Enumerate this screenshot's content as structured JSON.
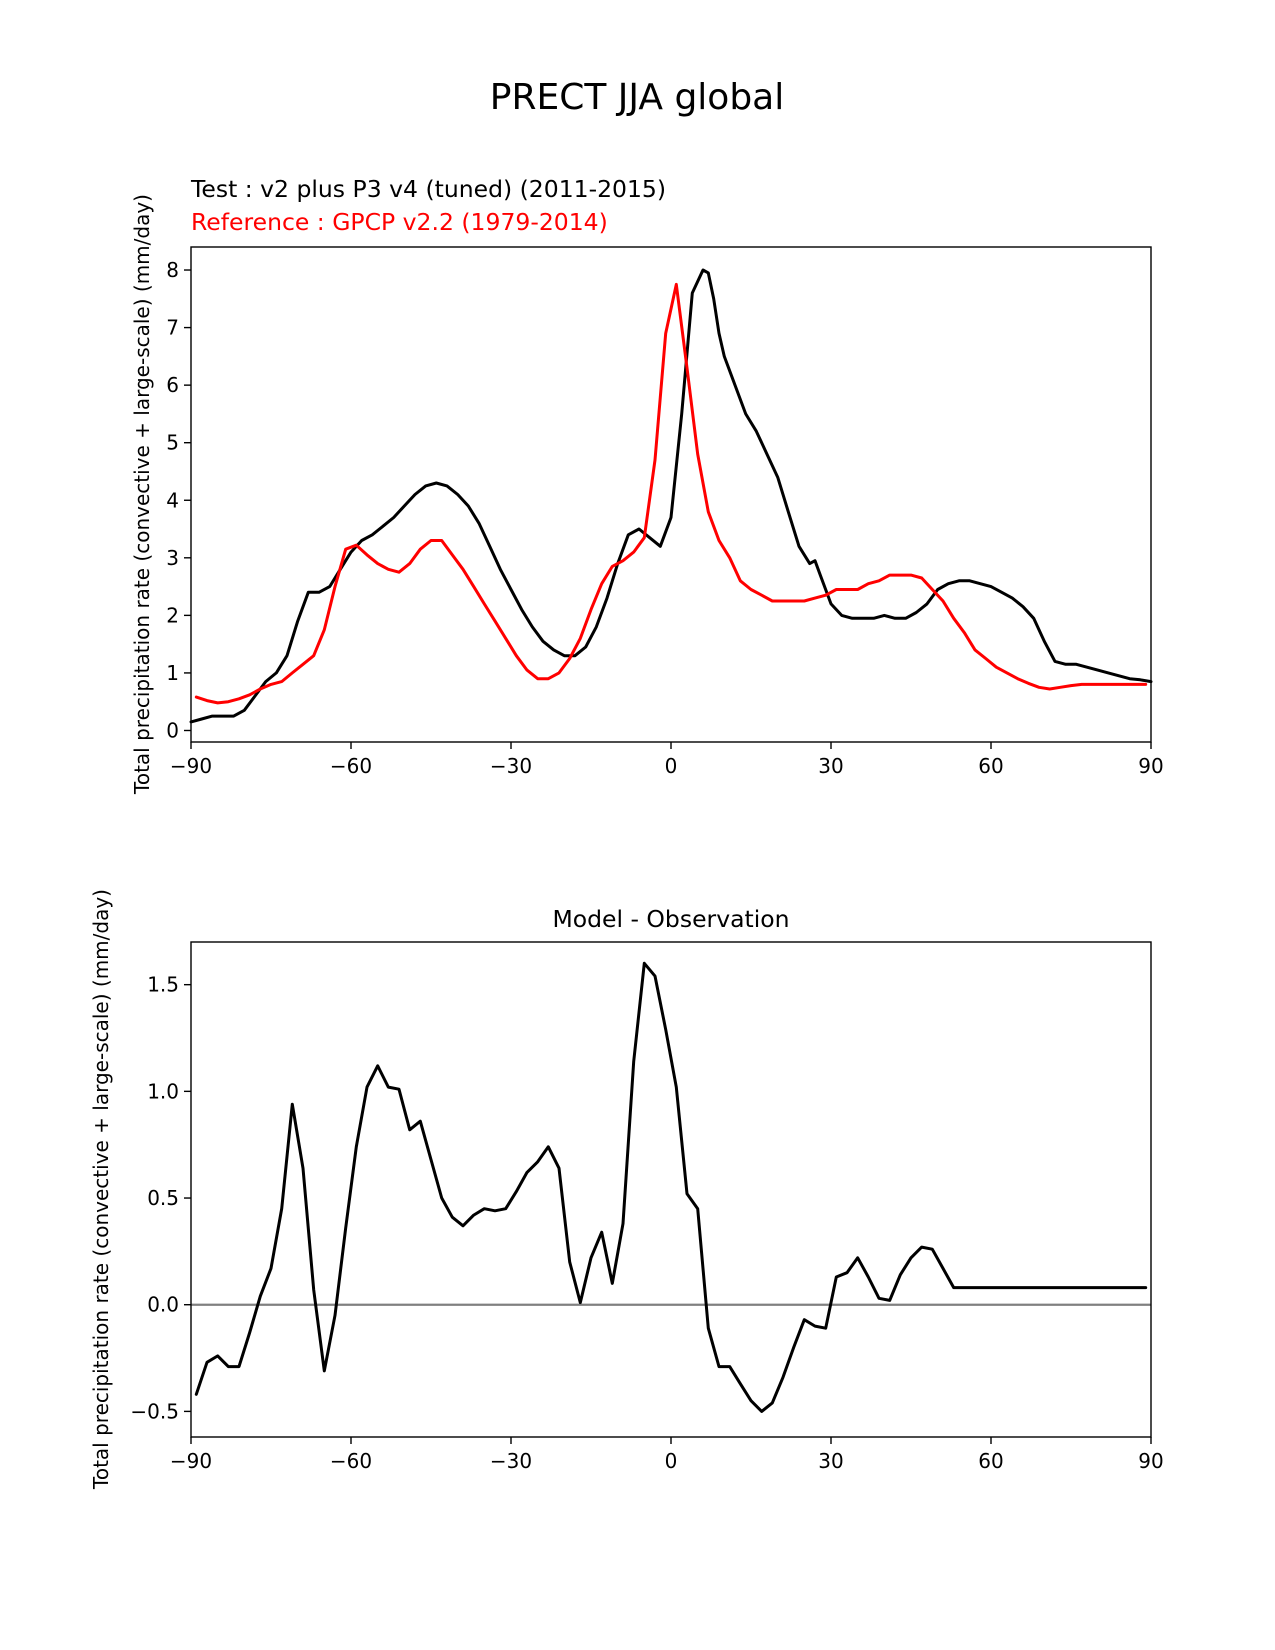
{
  "figure": {
    "title": "PRECT JJA global",
    "test_label": "Test : v2 plus P3 v4 (tuned) (2011-2015)",
    "reference_label": "Reference : GPCP v2.2 (1979-2014)"
  },
  "colors": {
    "test": "#000000",
    "reference": "#ff0000",
    "zero_line": "#808080"
  },
  "chart_data": [
    {
      "type": "line",
      "title": "",
      "xlabel": "",
      "ylabel": "Total precipitation rate (convective + large-scale) (mm/day)",
      "xlim": [
        -90,
        90
      ],
      "ylim": [
        -0.2,
        8.4
      ],
      "xticks": [
        -90,
        -60,
        -30,
        0,
        30,
        60,
        90
      ],
      "xtick_labels": [
        "−90",
        "−60",
        "−30",
        "0",
        "30",
        "60",
        "90"
      ],
      "yticks": [
        0,
        1,
        2,
        3,
        4,
        5,
        6,
        7,
        8
      ],
      "ytick_labels": [
        "0",
        "1",
        "2",
        "3",
        "4",
        "5",
        "6",
        "7",
        "8"
      ],
      "series": [
        {
          "name": "Test : v2 plus P3 v4 (tuned) (2011-2015)",
          "color": "#000000",
          "x": [
            -90,
            -88,
            -86,
            -84,
            -82,
            -80,
            -78,
            -76,
            -74,
            -72,
            -70,
            -68,
            -66,
            -64,
            -62,
            -60,
            -58,
            -56,
            -54,
            -52,
            -50,
            -48,
            -46,
            -44,
            -42,
            -40,
            -38,
            -36,
            -34,
            -32,
            -30,
            -28,
            -26,
            -24,
            -22,
            -20,
            -18,
            -16,
            -14,
            -12,
            -10,
            -8,
            -6,
            -4,
            -2,
            0,
            2,
            4,
            6,
            7,
            8,
            9,
            10,
            12,
            14,
            16,
            18,
            20,
            22,
            24,
            26,
            27,
            28,
            30,
            32,
            34,
            36,
            38,
            40,
            42,
            44,
            46,
            48,
            50,
            52,
            54,
            56,
            58,
            60,
            62,
            64,
            66,
            68,
            70,
            72,
            74,
            76,
            78,
            80,
            82,
            84,
            86,
            88,
            90
          ],
          "y": [
            0.15,
            0.2,
            0.25,
            0.25,
            0.25,
            0.35,
            0.6,
            0.85,
            1.0,
            1.3,
            1.9,
            2.4,
            2.4,
            2.5,
            2.8,
            3.1,
            3.3,
            3.4,
            3.55,
            3.7,
            3.9,
            4.1,
            4.25,
            4.3,
            4.25,
            4.1,
            3.9,
            3.6,
            3.2,
            2.8,
            2.45,
            2.1,
            1.8,
            1.55,
            1.4,
            1.3,
            1.3,
            1.45,
            1.8,
            2.3,
            2.9,
            3.4,
            3.5,
            3.35,
            3.2,
            3.7,
            5.5,
            7.6,
            8.0,
            7.95,
            7.5,
            6.9,
            6.5,
            6.0,
            5.5,
            5.2,
            4.8,
            4.4,
            3.8,
            3.2,
            2.9,
            2.95,
            2.7,
            2.2,
            2.0,
            1.95,
            1.95,
            1.95,
            2.0,
            1.95,
            1.95,
            2.05,
            2.2,
            2.45,
            2.55,
            2.6,
            2.6,
            2.55,
            2.5,
            2.4,
            2.3,
            2.15,
            1.95,
            1.55,
            1.2,
            1.15,
            1.15,
            1.1,
            1.05,
            1.0,
            0.95,
            0.9,
            0.88,
            0.85
          ]
        },
        {
          "name": "Reference : GPCP v2.2 (1979-2014)",
          "color": "#ff0000",
          "x": [
            -89,
            -87,
            -85,
            -83,
            -81,
            -79,
            -77,
            -75,
            -73,
            -71,
            -69,
            -67,
            -65,
            -63,
            -61,
            -59,
            -57,
            -55,
            -53,
            -51,
            -49,
            -47,
            -45,
            -43,
            -41,
            -39,
            -37,
            -35,
            -33,
            -31,
            -29,
            -27,
            -25,
            -23,
            -21,
            -19,
            -17,
            -15,
            -13,
            -11,
            -9,
            -7,
            -5,
            -3,
            -1,
            1,
            3,
            5,
            7,
            9,
            11,
            13,
            15,
            17,
            19,
            21,
            23,
            25,
            27,
            29,
            31,
            33,
            35,
            37,
            39,
            41,
            43,
            45,
            47,
            49,
            51,
            53,
            55,
            57,
            59,
            61,
            63,
            65,
            67,
            69,
            71,
            73,
            75,
            77,
            79,
            81,
            83,
            85,
            87,
            89
          ],
          "y": [
            0.58,
            0.52,
            0.48,
            0.5,
            0.55,
            0.62,
            0.72,
            0.8,
            0.85,
            1.0,
            1.15,
            1.3,
            1.75,
            2.5,
            3.15,
            3.22,
            3.05,
            2.9,
            2.8,
            2.75,
            2.9,
            3.15,
            3.3,
            3.3,
            3.05,
            2.8,
            2.5,
            2.2,
            1.9,
            1.6,
            1.3,
            1.05,
            0.9,
            0.9,
            1.0,
            1.25,
            1.6,
            2.1,
            2.55,
            2.85,
            2.95,
            3.1,
            3.35,
            4.7,
            6.9,
            7.75,
            6.3,
            4.8,
            3.8,
            3.3,
            3.0,
            2.6,
            2.45,
            2.35,
            2.25,
            2.25,
            2.25,
            2.25,
            2.3,
            2.35,
            2.45,
            2.45,
            2.45,
            2.55,
            2.6,
            2.7,
            2.7,
            2.7,
            2.65,
            2.45,
            2.25,
            1.95,
            1.7,
            1.4,
            1.25,
            1.1,
            1.0,
            0.9,
            0.82,
            0.75,
            0.72,
            0.75,
            0.78,
            0.8,
            0.8,
            0.8,
            0.8,
            0.8,
            0.8,
            0.8
          ]
        }
      ]
    },
    {
      "type": "line",
      "title": "Model - Observation",
      "xlabel": "",
      "ylabel": "Total precipitation rate (convective + large-scale) (mm/day)",
      "xlim": [
        -90,
        90
      ],
      "ylim": [
        -0.62,
        1.7
      ],
      "xticks": [
        -90,
        -60,
        -30,
        0,
        30,
        60,
        90
      ],
      "xtick_labels": [
        "−90",
        "−60",
        "−30",
        "0",
        "30",
        "60",
        "90"
      ],
      "yticks": [
        -0.5,
        0.0,
        0.5,
        1.0,
        1.5
      ],
      "ytick_labels": [
        "−0.5",
        "0.0",
        "0.5",
        "1.0",
        "1.5"
      ],
      "zero_line": 0,
      "series": [
        {
          "name": "Model - Observation",
          "color": "#000000",
          "x": [
            -89,
            -87,
            -85,
            -83,
            -81,
            -79,
            -77,
            -75,
            -73,
            -71,
            -69,
            -67,
            -65,
            -63,
            -61,
            -59,
            -57,
            -55,
            -53,
            -51,
            -49,
            -47,
            -45,
            -43,
            -41,
            -39,
            -37,
            -35,
            -33,
            -31,
            -29,
            -27,
            -25,
            -23,
            -21,
            -19,
            -17,
            -15,
            -13,
            -11,
            -9,
            -7,
            -5,
            -3,
            -1,
            1,
            3,
            5,
            7,
            9,
            11,
            13,
            15,
            17,
            19,
            21,
            23,
            25,
            27,
            29,
            31,
            33,
            35,
            37,
            39,
            41,
            43,
            45,
            47,
            49,
            51,
            53,
            55,
            57,
            59,
            61,
            63,
            65,
            67,
            69,
            71,
            73,
            75,
            77,
            79,
            81,
            83,
            85,
            87,
            89
          ],
          "y": [
            -0.42,
            -0.27,
            -0.24,
            -0.29,
            -0.29,
            -0.13,
            0.04,
            0.17,
            0.45,
            0.94,
            0.64,
            0.07,
            -0.31,
            -0.05,
            0.36,
            0.74,
            1.02,
            1.12,
            1.02,
            1.01,
            0.82,
            0.86,
            0.68,
            0.5,
            0.41,
            0.37,
            0.42,
            0.45,
            0.44,
            0.45,
            0.53,
            0.62,
            0.67,
            0.74,
            0.64,
            0.2,
            0.01,
            0.22,
            0.34,
            0.1,
            0.38,
            1.14,
            1.6,
            1.54,
            1.29,
            1.02,
            0.52,
            0.45,
            -0.11,
            -0.29,
            -0.29,
            -0.37,
            -0.45,
            -0.5,
            -0.46,
            -0.34,
            -0.2,
            -0.07,
            -0.1,
            -0.11,
            0.13,
            0.15,
            0.22,
            0.13,
            0.03,
            0.02,
            0.14,
            0.22,
            0.27,
            0.26,
            0.17,
            0.08,
            0.08,
            0.08,
            0.08,
            0.08,
            0.08,
            0.08,
            0.08,
            0.08,
            0.08,
            0.08,
            0.08,
            0.08,
            0.08,
            0.08,
            0.08,
            0.08,
            0.08,
            0.08
          ]
        }
      ]
    }
  ]
}
